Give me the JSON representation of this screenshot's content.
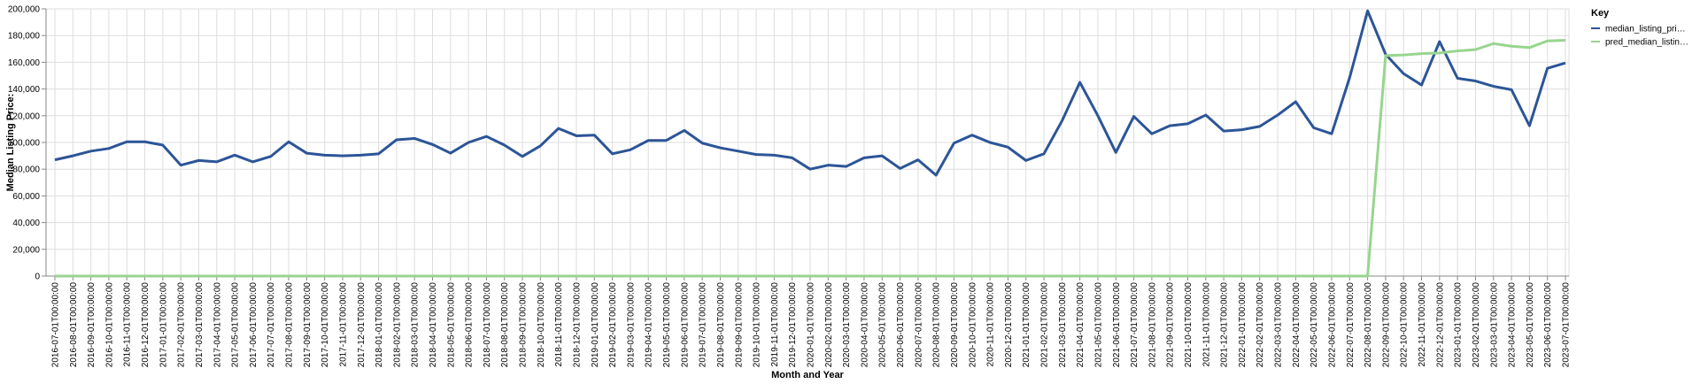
{
  "chart_data": {
    "type": "line",
    "xlabel": "Month and Year",
    "ylabel": "Median Listing Price:",
    "ylim": [
      0,
      200000
    ],
    "yticks": [
      "0",
      "20,000",
      "40,000",
      "60,000",
      "80,000",
      "100,000",
      "120,000",
      "140,000",
      "160,000",
      "180,000",
      "200,000"
    ],
    "grid": true,
    "legend": {
      "title": "Key",
      "position": "right"
    },
    "categories": [
      "2016-07-01T00:00:00",
      "2016-08-01T00:00:00",
      "2016-09-01T00:00:00",
      "2016-10-01T00:00:00",
      "2016-11-01T00:00:00",
      "2016-12-01T00:00:00",
      "2017-01-01T00:00:00",
      "2017-02-01T00:00:00",
      "2017-03-01T00:00:00",
      "2017-04-01T00:00:00",
      "2017-05-01T00:00:00",
      "2017-06-01T00:00:00",
      "2017-07-01T00:00:00",
      "2017-08-01T00:00:00",
      "2017-09-01T00:00:00",
      "2017-10-01T00:00:00",
      "2017-11-01T00:00:00",
      "2017-12-01T00:00:00",
      "2018-01-01T00:00:00",
      "2018-02-01T00:00:00",
      "2018-03-01T00:00:00",
      "2018-04-01T00:00:00",
      "2018-05-01T00:00:00",
      "2018-06-01T00:00:00",
      "2018-07-01T00:00:00",
      "2018-08-01T00:00:00",
      "2018-09-01T00:00:00",
      "2018-10-01T00:00:00",
      "2018-11-01T00:00:00",
      "2018-12-01T00:00:00",
      "2019-01-01T00:00:00",
      "2019-02-01T00:00:00",
      "2019-03-01T00:00:00",
      "2019-04-01T00:00:00",
      "2019-05-01T00:00:00",
      "2019-06-01T00:00:00",
      "2019-07-01T00:00:00",
      "2019-08-01T00:00:00",
      "2019-09-01T00:00:00",
      "2019-10-01T00:00:00",
      "2019-11-01T00:00:00",
      "2019-12-01T00:00:00",
      "2020-01-01T00:00:00",
      "2020-02-01T00:00:00",
      "2020-03-01T00:00:00",
      "2020-04-01T00:00:00",
      "2020-05-01T00:00:00",
      "2020-06-01T00:00:00",
      "2020-07-01T00:00:00",
      "2020-08-01T00:00:00",
      "2020-09-01T00:00:00",
      "2020-10-01T00:00:00",
      "2020-11-01T00:00:00",
      "2020-12-01T00:00:00",
      "2021-01-01T00:00:00",
      "2021-02-01T00:00:00",
      "2021-03-01T00:00:00",
      "2021-04-01T00:00:00",
      "2021-05-01T00:00:00",
      "2021-06-01T00:00:00",
      "2021-07-01T00:00:00",
      "2021-08-01T00:00:00",
      "2021-09-01T00:00:00",
      "2021-10-01T00:00:00",
      "2021-11-01T00:00:00",
      "2021-12-01T00:00:00",
      "2022-01-01T00:00:00",
      "2022-02-01T00:00:00",
      "2022-03-01T00:00:00",
      "2022-04-01T00:00:00",
      "2022-05-01T00:00:00",
      "2022-06-01T00:00:00",
      "2022-07-01T00:00:00",
      "2022-08-01T00:00:00",
      "2022-09-01T00:00:00",
      "2022-10-01T00:00:00",
      "2022-11-01T00:00:00",
      "2022-12-01T00:00:00",
      "2023-01-01T00:00:00",
      "2023-02-01T00:00:00",
      "2023-03-01T00:00:00",
      "2023-04-01T00:00:00",
      "2023-05-01T00:00:00",
      "2023-06-01T00:00:00",
      "2023-07-01T00:00:00"
    ],
    "series": [
      {
        "name": "median_listing_pri…",
        "color": "#2c5597",
        "values": [
          87000,
          90000,
          93500,
          95500,
          100500,
          100500,
          98000,
          83000,
          86500,
          85500,
          90500,
          85500,
          89500,
          100500,
          92000,
          90500,
          90000,
          90500,
          91500,
          102000,
          103000,
          98500,
          92000,
          100000,
          104500,
          98000,
          89500,
          97500,
          110500,
          105000,
          105500,
          91500,
          94500,
          101500,
          101500,
          109000,
          99500,
          96000,
          93500,
          91000,
          90500,
          88500,
          80000,
          83000,
          82000,
          88500,
          90000,
          80500,
          87000,
          75500,
          99500,
          105500,
          100000,
          96500,
          86500,
          91500,
          116000,
          145000,
          120000,
          92500,
          119500,
          106500,
          112500,
          114000,
          120500,
          108500,
          109500,
          112000,
          120500,
          130500,
          111000,
          106500,
          148500,
          198500,
          166000,
          151500,
          143000,
          175500,
          148000,
          146000,
          142000,
          139500,
          112500,
          155500,
          159500
        ]
      },
      {
        "name": "pred_median_listin…",
        "color": "#98d58f",
        "values": [
          0,
          0,
          0,
          0,
          0,
          0,
          0,
          0,
          0,
          0,
          0,
          0,
          0,
          0,
          0,
          0,
          0,
          0,
          0,
          0,
          0,
          0,
          0,
          0,
          0,
          0,
          0,
          0,
          0,
          0,
          0,
          0,
          0,
          0,
          0,
          0,
          0,
          0,
          0,
          0,
          0,
          0,
          0,
          0,
          0,
          0,
          0,
          0,
          0,
          0,
          0,
          0,
          0,
          0,
          0,
          0,
          0,
          0,
          0,
          0,
          0,
          0,
          0,
          0,
          0,
          0,
          0,
          0,
          0,
          0,
          0,
          0,
          0,
          0,
          165000,
          165500,
          166500,
          167000,
          168500,
          169500,
          174000,
          172000,
          171000,
          176000,
          176500
        ]
      }
    ]
  }
}
